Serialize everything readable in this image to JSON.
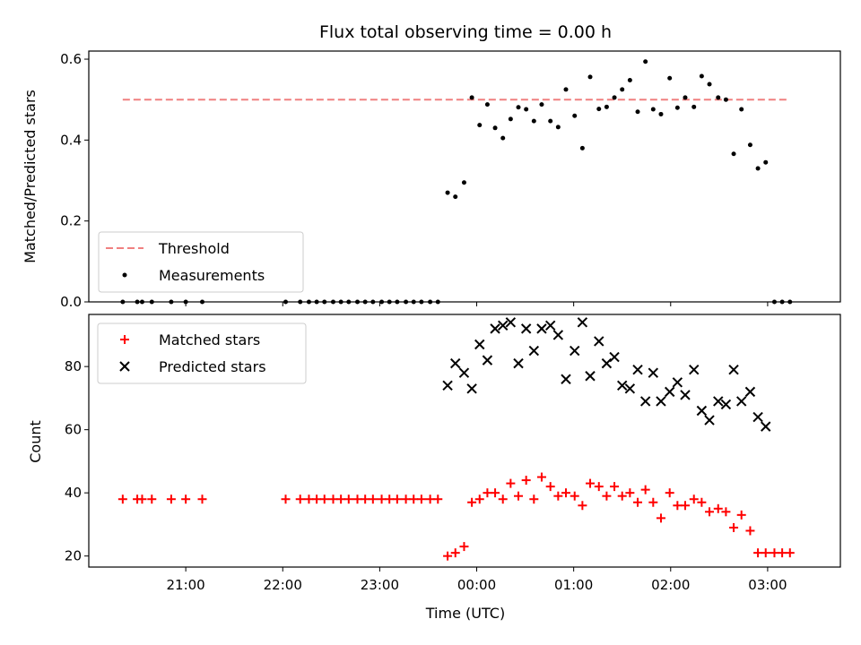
{
  "chart_data": {
    "type": "scatter",
    "title": "Flux total observing time = 0.00 h",
    "xlabel": "Time (UTC)",
    "x_unit": "hours UTC (values past 24 are after midnight)",
    "xlim": [
      20.0,
      27.75
    ],
    "x_ticks": [
      {
        "x": 21,
        "label": "21:00"
      },
      {
        "x": 22,
        "label": "22:00"
      },
      {
        "x": 23,
        "label": "23:00"
      },
      {
        "x": 24,
        "label": "00:00"
      },
      {
        "x": 25,
        "label": "01:00"
      },
      {
        "x": 26,
        "label": "02:00"
      },
      {
        "x": 27,
        "label": "03:00"
      }
    ],
    "top": {
      "ylabel": "Matched/Predicted stars",
      "ylim": [
        0.0,
        0.62
      ],
      "yticks": [
        "0.0",
        "0.2",
        "0.4",
        "0.6"
      ],
      "ytick_values": [
        0.0,
        0.2,
        0.4,
        0.6
      ],
      "legend_position": "lower-left",
      "threshold": {
        "name": "Threshold",
        "value": 0.5,
        "x_range": [
          20.35,
          27.22
        ],
        "color": "#f08080"
      },
      "measurements": {
        "name": "Measurements",
        "color": "#000000",
        "points": [
          [
            20.35,
            0.0
          ],
          [
            20.5,
            0.0
          ],
          [
            20.55,
            0.0
          ],
          [
            20.65,
            0.0
          ],
          [
            20.85,
            0.0
          ],
          [
            21.0,
            0.0
          ],
          [
            21.17,
            0.0
          ],
          [
            22.03,
            0.0
          ],
          [
            22.18,
            0.0
          ],
          [
            22.27,
            0.0
          ],
          [
            22.35,
            0.0
          ],
          [
            22.43,
            0.0
          ],
          [
            22.52,
            0.0
          ],
          [
            22.6,
            0.0
          ],
          [
            22.68,
            0.0
          ],
          [
            22.77,
            0.0
          ],
          [
            22.85,
            0.0
          ],
          [
            22.93,
            0.0
          ],
          [
            23.02,
            0.0
          ],
          [
            23.1,
            0.0
          ],
          [
            23.18,
            0.0
          ],
          [
            23.27,
            0.0
          ],
          [
            23.35,
            0.0
          ],
          [
            23.43,
            0.0
          ],
          [
            23.52,
            0.0
          ],
          [
            23.6,
            0.0
          ],
          [
            23.7,
            0.27
          ],
          [
            23.78,
            0.26
          ],
          [
            23.87,
            0.295
          ],
          [
            23.95,
            0.505
          ],
          [
            24.03,
            0.437
          ],
          [
            24.11,
            0.488
          ],
          [
            24.19,
            0.43
          ],
          [
            24.27,
            0.405
          ],
          [
            24.35,
            0.452
          ],
          [
            24.43,
            0.481
          ],
          [
            24.51,
            0.476
          ],
          [
            24.59,
            0.447
          ],
          [
            24.67,
            0.488
          ],
          [
            24.76,
            0.447
          ],
          [
            24.84,
            0.432
          ],
          [
            24.92,
            0.525
          ],
          [
            25.01,
            0.46
          ],
          [
            25.09,
            0.38
          ],
          [
            25.17,
            0.556
          ],
          [
            25.26,
            0.477
          ],
          [
            25.34,
            0.482
          ],
          [
            25.42,
            0.505
          ],
          [
            25.5,
            0.525
          ],
          [
            25.58,
            0.548
          ],
          [
            25.66,
            0.47
          ],
          [
            25.74,
            0.594
          ],
          [
            25.82,
            0.476
          ],
          [
            25.9,
            0.464
          ],
          [
            25.99,
            0.553
          ],
          [
            26.07,
            0.48
          ],
          [
            26.15,
            0.505
          ],
          [
            26.24,
            0.482
          ],
          [
            26.32,
            0.558
          ],
          [
            26.4,
            0.538
          ],
          [
            26.49,
            0.505
          ],
          [
            26.57,
            0.5
          ],
          [
            26.65,
            0.366
          ],
          [
            26.73,
            0.476
          ],
          [
            26.82,
            0.388
          ],
          [
            26.9,
            0.33
          ],
          [
            26.98,
            0.345
          ],
          [
            27.07,
            0.0
          ],
          [
            27.15,
            0.0
          ],
          [
            27.23,
            0.0
          ]
        ]
      }
    },
    "bottom": {
      "ylabel": "Count",
      "ylim": [
        16.5,
        96.5
      ],
      "yticks": [
        "20",
        "40",
        "60",
        "80"
      ],
      "ytick_values": [
        20,
        40,
        60,
        80
      ],
      "legend_position": "upper-left",
      "matched": {
        "name": "Matched stars",
        "color": "#ff0000",
        "points": [
          [
            20.35,
            38
          ],
          [
            20.5,
            38
          ],
          [
            20.55,
            38
          ],
          [
            20.65,
            38
          ],
          [
            20.85,
            38
          ],
          [
            21.0,
            38
          ],
          [
            21.17,
            38
          ],
          [
            22.03,
            38
          ],
          [
            22.18,
            38
          ],
          [
            22.27,
            38
          ],
          [
            22.35,
            38
          ],
          [
            22.43,
            38
          ],
          [
            22.52,
            38
          ],
          [
            22.6,
            38
          ],
          [
            22.68,
            38
          ],
          [
            22.77,
            38
          ],
          [
            22.85,
            38
          ],
          [
            22.93,
            38
          ],
          [
            23.02,
            38
          ],
          [
            23.1,
            38
          ],
          [
            23.18,
            38
          ],
          [
            23.27,
            38
          ],
          [
            23.35,
            38
          ],
          [
            23.43,
            38
          ],
          [
            23.52,
            38
          ],
          [
            23.6,
            38
          ],
          [
            23.7,
            20
          ],
          [
            23.78,
            21
          ],
          [
            23.87,
            23
          ],
          [
            23.95,
            37
          ],
          [
            24.03,
            38
          ],
          [
            24.11,
            40
          ],
          [
            24.19,
            40
          ],
          [
            24.27,
            38
          ],
          [
            24.35,
            43
          ],
          [
            24.43,
            39
          ],
          [
            24.51,
            44
          ],
          [
            24.59,
            38
          ],
          [
            24.67,
            45
          ],
          [
            24.76,
            42
          ],
          [
            24.84,
            39
          ],
          [
            24.92,
            40
          ],
          [
            25.01,
            39
          ],
          [
            25.09,
            36
          ],
          [
            25.17,
            43
          ],
          [
            25.26,
            42
          ],
          [
            25.34,
            39
          ],
          [
            25.42,
            42
          ],
          [
            25.5,
            39
          ],
          [
            25.58,
            40
          ],
          [
            25.66,
            37
          ],
          [
            25.74,
            41
          ],
          [
            25.82,
            37
          ],
          [
            25.9,
            32
          ],
          [
            25.99,
            40
          ],
          [
            26.07,
            36
          ],
          [
            26.15,
            36
          ],
          [
            26.24,
            38
          ],
          [
            26.32,
            37
          ],
          [
            26.4,
            34
          ],
          [
            26.49,
            35
          ],
          [
            26.57,
            34
          ],
          [
            26.65,
            29
          ],
          [
            26.73,
            33
          ],
          [
            26.82,
            28
          ],
          [
            26.9,
            21
          ],
          [
            26.98,
            21
          ],
          [
            27.07,
            21
          ],
          [
            27.15,
            21
          ],
          [
            27.23,
            21
          ]
        ]
      },
      "predicted": {
        "name": "Predicted stars",
        "color": "#000000",
        "points": [
          [
            23.7,
            74
          ],
          [
            23.78,
            81
          ],
          [
            23.87,
            78
          ],
          [
            23.95,
            73
          ],
          [
            24.03,
            87
          ],
          [
            24.11,
            82
          ],
          [
            24.19,
            92
          ],
          [
            24.27,
            93
          ],
          [
            24.35,
            94
          ],
          [
            24.43,
            81
          ],
          [
            24.51,
            92
          ],
          [
            24.59,
            85
          ],
          [
            24.67,
            92
          ],
          [
            24.76,
            93
          ],
          [
            24.84,
            90
          ],
          [
            24.92,
            76
          ],
          [
            25.01,
            85
          ],
          [
            25.09,
            94
          ],
          [
            25.17,
            77
          ],
          [
            25.26,
            88
          ],
          [
            25.34,
            81
          ],
          [
            25.42,
            83
          ],
          [
            25.5,
            74
          ],
          [
            25.58,
            73
          ],
          [
            25.66,
            79
          ],
          [
            25.74,
            69
          ],
          [
            25.82,
            78
          ],
          [
            25.9,
            69
          ],
          [
            25.99,
            72
          ],
          [
            26.07,
            75
          ],
          [
            26.15,
            71
          ],
          [
            26.24,
            79
          ],
          [
            26.32,
            66
          ],
          [
            26.4,
            63
          ],
          [
            26.49,
            69
          ],
          [
            26.57,
            68
          ],
          [
            26.65,
            79
          ],
          [
            26.73,
            69
          ],
          [
            26.82,
            72
          ],
          [
            26.9,
            64
          ],
          [
            26.98,
            61
          ]
        ]
      }
    }
  }
}
